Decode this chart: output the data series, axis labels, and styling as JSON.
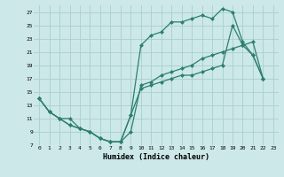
{
  "xlabel": "Humidex (Indice chaleur)",
  "bg_color": "#cce8e8",
  "grid_color": "#aacece",
  "line_color": "#2d7f70",
  "xlim": [
    -0.5,
    23.5
  ],
  "ylim": [
    7,
    28
  ],
  "yticks": [
    7,
    9,
    11,
    13,
    15,
    17,
    19,
    21,
    23,
    25,
    27
  ],
  "xticks": [
    0,
    1,
    2,
    3,
    4,
    5,
    6,
    7,
    8,
    9,
    10,
    11,
    12,
    13,
    14,
    15,
    16,
    17,
    18,
    19,
    20,
    21,
    22,
    23
  ],
  "line1_x": [
    0,
    1,
    2,
    3,
    4,
    5,
    6,
    7,
    8,
    9,
    10,
    11,
    12,
    13,
    14,
    15,
    16,
    17,
    18,
    19,
    20,
    21,
    22
  ],
  "line1_y": [
    14,
    12,
    11,
    11,
    9.5,
    9,
    8,
    7.5,
    7.5,
    11.5,
    22,
    23.5,
    24,
    25.5,
    25.5,
    26,
    26.5,
    26,
    27.5,
    27,
    22.5,
    20.5,
    17
  ],
  "line2_x": [
    0,
    1,
    2,
    3,
    4,
    5,
    6,
    7,
    8,
    9,
    10,
    11,
    12,
    13,
    14,
    15,
    16,
    17,
    18,
    19,
    20,
    21,
    22
  ],
  "line2_y": [
    14,
    12,
    11,
    10,
    9.5,
    9,
    8,
    7.5,
    7.5,
    9,
    16,
    16.5,
    17.5,
    18,
    18.5,
    19,
    20,
    20.5,
    21,
    21.5,
    22,
    22.5,
    17
  ],
  "line3_x": [
    0,
    1,
    2,
    3,
    4,
    5,
    6,
    7,
    8,
    9,
    10,
    11,
    12,
    13,
    14,
    15,
    16,
    17,
    18,
    19,
    20,
    21,
    22
  ],
  "line3_y": [
    14,
    12,
    11,
    10,
    9.5,
    9,
    8,
    7.5,
    7.5,
    11.5,
    15.5,
    16,
    16.5,
    17,
    17.5,
    17.5,
    18,
    18.5,
    19,
    25,
    22,
    20.5,
    17
  ]
}
